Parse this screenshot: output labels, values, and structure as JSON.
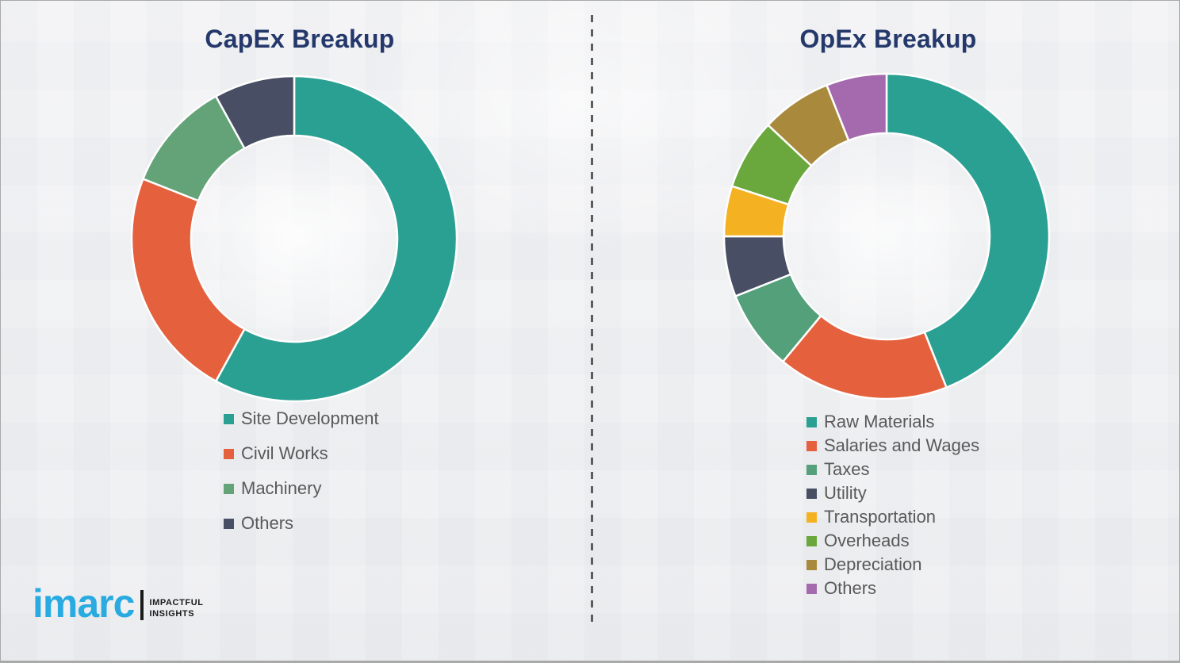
{
  "theme": {
    "background_color": "#F1F1F3",
    "border_color": "#A9A9A9",
    "divider_color": "#5C5C5C",
    "title_color": "#24386B",
    "legend_text_color": "#595959",
    "logo_blue": "#29ABE2",
    "logo_black": "#1A1A1A",
    "segment_gap_color": "#FFFFFF"
  },
  "chart_data": [
    {
      "type": "pie",
      "donut": true,
      "title": "CapEx Breakup",
      "legend_position": "below-left",
      "labels": [
        "Site Development",
        "Civil Works",
        "Machinery",
        "Others"
      ],
      "values": [
        58,
        23,
        11,
        8
      ],
      "colors": [
        "#2AA092",
        "#E5603D",
        "#63A377",
        "#484E64"
      ]
    },
    {
      "type": "pie",
      "donut": true,
      "title": "OpEx Breakup",
      "legend_position": "below-left",
      "labels": [
        "Raw Materials",
        "Salaries and Wages",
        "Taxes",
        "Utility",
        "Transportation",
        "Overheads",
        "Depreciation",
        "Others"
      ],
      "values": [
        44,
        17,
        8,
        6,
        5,
        7,
        7,
        6
      ],
      "colors": [
        "#2AA092",
        "#E5603D",
        "#53A07A",
        "#484E64",
        "#F4B223",
        "#6AA83D",
        "#A98A3D",
        "#A46AAD"
      ]
    }
  ],
  "logo": {
    "brand": "imarc",
    "tagline_line1": "IMPACTFUL",
    "tagline_line2": "INSIGHTS"
  }
}
